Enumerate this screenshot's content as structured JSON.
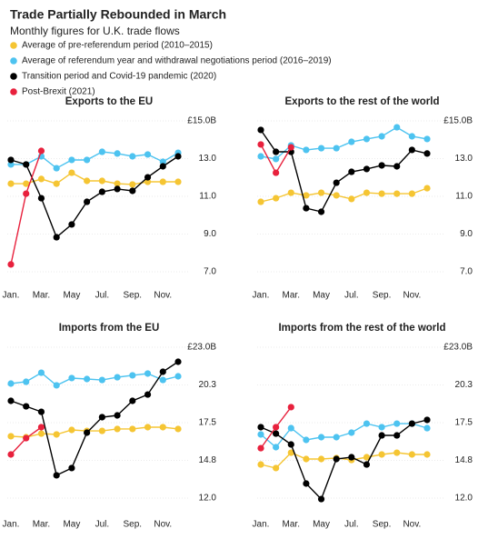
{
  "title": "Trade Partially Rebounded in March",
  "subtitle": "Monthly figures for U.K. trade flows",
  "legend": [
    {
      "name": "Average of pre-referendum period  (2010–2015)",
      "color": "#f5c533"
    },
    {
      "name": "Average of referendum year and withdrawal negotiations period (2016–2019)",
      "color": "#4dc3f0"
    },
    {
      "name": "Transition period and Covid-19 pandemic (2020)",
      "color": "#000000"
    },
    {
      "name": "Post-Brexit (2021)",
      "color": "#e8213d"
    }
  ],
  "chart_data": [
    {
      "type": "line",
      "title": "Exports to the EU",
      "categories": [
        "Jan.",
        null,
        "Mar.",
        null,
        "May",
        null,
        "Jul.",
        null,
        "Sep.",
        null,
        "Nov.",
        null
      ],
      "ylim": [
        7,
        15
      ],
      "yticks": [
        {
          "value": 7,
          "label": "7.0"
        },
        {
          "value": 9,
          "label": "9.0"
        },
        {
          "value": 11,
          "label": "11.0"
        },
        {
          "value": 13,
          "label": "13.0"
        },
        {
          "value": 15,
          "label": "£15.0B"
        }
      ],
      "series": [
        {
          "values": [
            11.67,
            11.67,
            11.92,
            11.67,
            12.25,
            11.82,
            11.82,
            11.67,
            11.63,
            11.77,
            11.77,
            11.77
          ]
        },
        {
          "values": [
            12.69,
            12.69,
            13.12,
            12.49,
            12.93,
            12.93,
            13.36,
            13.27,
            13.12,
            13.22,
            12.83,
            13.31
          ]
        },
        {
          "values": [
            12.93,
            12.69,
            10.9,
            8.83,
            9.51,
            10.71,
            11.24,
            11.39,
            11.29,
            12.01,
            12.59,
            13.12
          ]
        },
        {
          "values": [
            7.39,
            11.14,
            13.41,
            null,
            null,
            null,
            null,
            null,
            null,
            null,
            null,
            null
          ]
        }
      ]
    },
    {
      "type": "line",
      "title": "Exports to the rest of the world",
      "categories": [
        "Jan.",
        null,
        "Mar.",
        null,
        "May",
        null,
        "Jul.",
        null,
        "Sep.",
        null,
        "Nov.",
        null
      ],
      "ylim": [
        7,
        15
      ],
      "yticks": [
        {
          "value": 7,
          "label": "7.0"
        },
        {
          "value": 9,
          "label": "9.0"
        },
        {
          "value": 11,
          "label": "11.0"
        },
        {
          "value": 13,
          "label": "13.0"
        },
        {
          "value": 15,
          "label": "£15.0B"
        }
      ],
      "series": [
        {
          "values": [
            10.71,
            10.9,
            11.19,
            11.05,
            11.19,
            11.05,
            10.86,
            11.19,
            11.14,
            11.14,
            11.14,
            11.43
          ]
        },
        {
          "values": [
            13.12,
            12.98,
            13.7,
            13.46,
            13.55,
            13.55,
            13.89,
            14.04,
            14.18,
            14.66,
            14.18,
            14.04
          ]
        },
        {
          "values": [
            14.52,
            13.36,
            13.36,
            10.37,
            10.18,
            11.72,
            12.3,
            12.45,
            12.64,
            12.59,
            13.46,
            13.27
          ]
        },
        {
          "values": [
            13.75,
            12.25,
            13.6,
            null,
            null,
            null,
            null,
            null,
            null,
            null,
            null,
            null
          ]
        }
      ]
    },
    {
      "type": "line",
      "title": "Imports from the EU",
      "categories": [
        "Jan.",
        null,
        "Mar.",
        null,
        "May",
        null,
        "Jul.",
        null,
        "Sep.",
        null,
        "Nov.",
        null
      ],
      "ylim": [
        12,
        23
      ],
      "yticks": [
        {
          "value": 12,
          "label": "12.0"
        },
        {
          "value": 14.75,
          "label": "14.8"
        },
        17.5,
        {
          "value": 20.25,
          "label": "20.3"
        },
        {
          "value": 23,
          "label": "£23.0B"
        }
      ],
      "series": [
        {
          "values": [
            16.51,
            16.44,
            16.7,
            16.64,
            16.97,
            16.9,
            16.9,
            17.04,
            17.04,
            17.17,
            17.17,
            17.04
          ]
        },
        {
          "values": [
            20.35,
            20.48,
            21.14,
            20.22,
            20.75,
            20.68,
            20.61,
            20.81,
            20.95,
            21.08,
            20.61,
            20.88
          ]
        },
        {
          "values": [
            19.09,
            18.69,
            18.29,
            13.66,
            14.19,
            16.77,
            17.9,
            18.03,
            19.09,
            19.55,
            21.21,
            21.94
          ]
        },
        {
          "values": [
            15.18,
            16.37,
            17.17,
            null,
            null,
            null,
            null,
            null,
            null,
            null,
            null,
            null
          ]
        }
      ]
    },
    {
      "type": "line",
      "title": "Imports from the rest of the world",
      "categories": [
        "Jan.",
        null,
        "Mar.",
        null,
        "May",
        null,
        "Jul.",
        null,
        "Sep.",
        null,
        "Nov.",
        null
      ],
      "ylim": [
        12,
        23
      ],
      "yticks": [
        {
          "value": 12,
          "label": "12.0"
        },
        {
          "value": 14.75,
          "label": "14.8"
        },
        17.5,
        {
          "value": 20.25,
          "label": "20.3"
        },
        {
          "value": 23,
          "label": "£23.0B"
        }
      ],
      "series": [
        {
          "values": [
            14.45,
            14.19,
            15.31,
            14.85,
            14.85,
            14.92,
            14.78,
            14.98,
            15.18,
            15.31,
            15.18,
            15.18
          ]
        },
        {
          "values": [
            16.64,
            15.71,
            17.1,
            16.24,
            16.44,
            16.44,
            16.77,
            17.43,
            17.17,
            17.43,
            17.43,
            17.1
          ]
        },
        {
          "values": [
            17.17,
            16.7,
            15.91,
            13.06,
            11.93,
            14.85,
            14.98,
            14.45,
            16.57,
            16.57,
            17.43,
            17.7
          ]
        },
        {
          "values": [
            15.64,
            17.17,
            18.63,
            null,
            null,
            null,
            null,
            null,
            null,
            null,
            null,
            null
          ]
        }
      ]
    }
  ]
}
